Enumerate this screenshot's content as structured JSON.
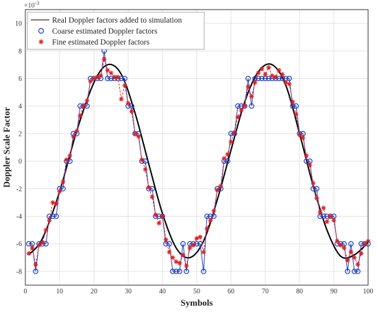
{
  "chart_data": {
    "type": "line",
    "xlabel": "Symbols",
    "ylabel": "Doppler Scale Factor",
    "exponent_label": "×10",
    "exponent_power": "-3",
    "xlim": [
      0,
      100
    ],
    "ylim": [
      -9,
      11
    ],
    "xticks": [
      0,
      10,
      20,
      30,
      40,
      50,
      60,
      70,
      80,
      90,
      100
    ],
    "yticks": [
      -8,
      -6,
      -4,
      -2,
      0,
      2,
      4,
      6,
      8,
      10
    ],
    "grid": true,
    "legend_position": "top-left",
    "series": [
      {
        "name": "Real Doppler factors added to simulation",
        "style": "line",
        "color": "#000000",
        "x": [
          1,
          5,
          10,
          15,
          20,
          24,
          28,
          32,
          36,
          40,
          44,
          48,
          52,
          56,
          60,
          64,
          68,
          72,
          76,
          80,
          84,
          88,
          92,
          96,
          100
        ],
        "values": [
          -6.8,
          -5.6,
          -2.2,
          2.2,
          5.7,
          7.0,
          6.3,
          3.5,
          -0.2,
          -3.8,
          -6.3,
          -7.0,
          -5.8,
          -2.8,
          0.8,
          4.3,
          6.5,
          7.0,
          5.5,
          2.0,
          -1.8,
          -5.0,
          -6.9,
          -6.8,
          -5.9
        ]
      },
      {
        "name": "Coarse estimated Doppler factors",
        "style": "circle",
        "color": "#1f3fbf",
        "x": [
          1,
          2,
          3,
          4,
          5,
          6,
          7,
          8,
          9,
          10,
          11,
          12,
          13,
          14,
          15,
          16,
          17,
          18,
          19,
          20,
          21,
          22,
          23,
          24,
          25,
          26,
          27,
          28,
          29,
          30,
          31,
          32,
          33,
          34,
          35,
          36,
          37,
          38,
          39,
          40,
          41,
          42,
          43,
          44,
          45,
          46,
          47,
          48,
          49,
          50,
          51,
          52,
          53,
          54,
          55,
          56,
          57,
          58,
          59,
          60,
          61,
          62,
          63,
          64,
          65,
          66,
          67,
          68,
          69,
          70,
          71,
          72,
          73,
          74,
          75,
          76,
          77,
          78,
          79,
          80,
          81,
          82,
          83,
          84,
          85,
          86,
          87,
          88,
          89,
          90,
          91,
          92,
          93,
          94,
          95,
          96,
          97,
          98,
          99,
          100
        ],
        "values": [
          -6,
          -6,
          -8,
          -6,
          -6,
          -6,
          -4,
          -4,
          -4,
          -2,
          -2,
          0,
          0,
          2,
          2,
          4,
          4,
          4,
          6,
          6,
          6,
          6,
          8,
          6,
          6,
          6,
          6,
          6,
          6,
          4,
          4,
          2,
          2,
          0,
          0,
          -2,
          -2,
          -4,
          -4,
          -4,
          -6,
          -6,
          -8,
          -8,
          -8,
          -6,
          -8,
          -6,
          -6,
          -6,
          -6,
          -8,
          -4,
          -4,
          -4,
          -2,
          -2,
          0,
          0,
          2,
          2,
          4,
          4,
          4,
          6,
          4,
          6,
          6,
          6,
          6,
          6,
          6,
          6,
          6,
          6,
          6,
          6,
          4,
          4,
          2,
          2,
          0,
          0,
          -2,
          -2,
          -4,
          -4,
          -4,
          -4,
          -4,
          -6,
          -6,
          -6,
          -8,
          -6,
          -8,
          -8,
          -6,
          -6,
          -6
        ]
      },
      {
        "name": "Fine estimated Doppler factors",
        "style": "star",
        "color": "#e02020",
        "x": [
          1,
          2,
          3,
          4,
          5,
          6,
          7,
          8,
          9,
          10,
          11,
          12,
          13,
          14,
          15,
          16,
          17,
          18,
          19,
          20,
          21,
          22,
          23,
          24,
          25,
          26,
          27,
          28,
          29,
          30,
          31,
          32,
          33,
          34,
          35,
          36,
          37,
          38,
          39,
          40,
          41,
          42,
          43,
          44,
          45,
          46,
          47,
          48,
          49,
          50,
          51,
          52,
          53,
          54,
          55,
          56,
          57,
          58,
          59,
          60,
          61,
          62,
          63,
          64,
          65,
          66,
          67,
          68,
          69,
          70,
          71,
          72,
          73,
          74,
          75,
          76,
          77,
          78,
          79,
          80,
          81,
          82,
          83,
          84,
          85,
          86,
          87,
          88,
          89,
          90,
          91,
          92,
          93,
          94,
          95,
          96,
          97,
          98,
          99,
          100
        ],
        "values": [
          -6.7,
          -6.3,
          -7.5,
          -6.1,
          -5.9,
          -5.0,
          -4.3,
          -3.0,
          -3.1,
          -2.2,
          -1.5,
          0.1,
          0.4,
          1.8,
          2.2,
          3.3,
          4.0,
          4.4,
          5.8,
          6.0,
          6.1,
          6.2,
          7.4,
          6.6,
          6.4,
          6.1,
          6.1,
          4.5,
          5.5,
          4.2,
          3.6,
          2.0,
          1.8,
          0.1,
          -0.6,
          -1.9,
          -2.6,
          -3.9,
          -4.5,
          -4.0,
          -5.7,
          -6.6,
          -7.0,
          -7.3,
          -7.4,
          -6.8,
          -7.6,
          -6.3,
          -6.1,
          -5.6,
          -5.5,
          -6.6,
          -4.9,
          -4.3,
          -3.6,
          -2.1,
          -1.8,
          0.2,
          0.5,
          1.4,
          2.1,
          3.2,
          3.7,
          4.0,
          5.4,
          4.7,
          5.7,
          6.4,
          6.7,
          6.3,
          6.8,
          6.2,
          6.1,
          6.6,
          6.3,
          5.7,
          5.6,
          4.3,
          3.4,
          1.9,
          1.7,
          0.4,
          -0.3,
          -1.6,
          -2.7,
          -3.7,
          -3.4,
          -4.4,
          -4.0,
          -4.3,
          -5.8,
          -6.1,
          -6.3,
          -7.2,
          -6.6,
          -7.0,
          -7.5,
          -6.7,
          -6.0,
          -5.8
        ]
      }
    ]
  }
}
